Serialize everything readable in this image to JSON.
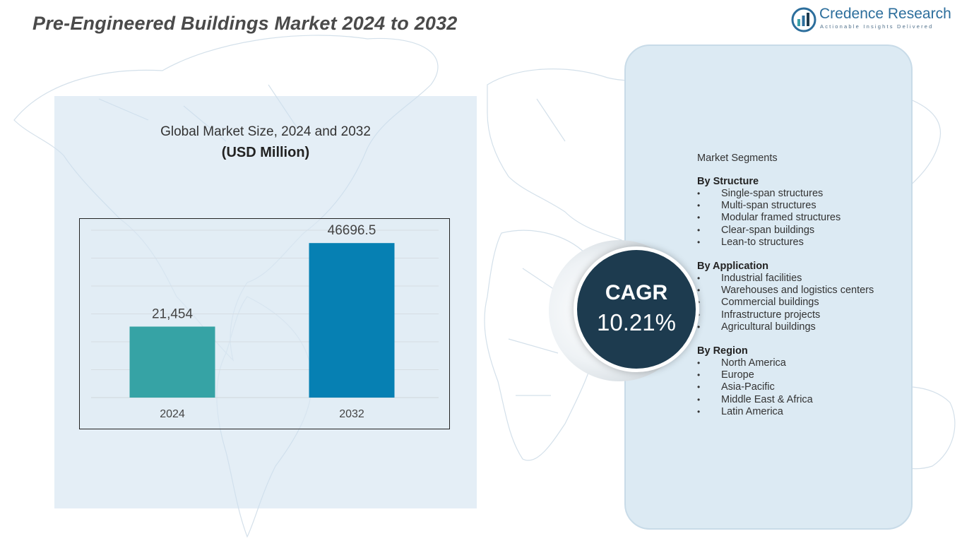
{
  "header": {
    "title": "Pre-Engineered Buildings Market 2024 to 2032",
    "logo_name": "Credence Research",
    "logo_tagline": "Actionable Insights Delivered"
  },
  "chart_data": {
    "type": "bar",
    "title": "Global Market Size, 2024 and 2032",
    "subtitle": "(USD Million)",
    "categories": [
      "2024",
      "2032"
    ],
    "values": [
      21454,
      46696.5
    ],
    "data_labels": [
      "21,454",
      "46696.5"
    ],
    "colors": [
      "#36a3a5",
      "#0680b3"
    ],
    "ylim": [
      0,
      52500
    ],
    "grid": true,
    "xlabel": "",
    "ylabel": ""
  },
  "cagr": {
    "label": "CAGR",
    "value": "10.21%",
    "circle_color": "#1d3b4f"
  },
  "segments": {
    "title": "Market Segments",
    "groups": [
      {
        "title": "By Structure",
        "items": [
          "Single-span structures",
          "Multi-span structures",
          "Modular framed structures",
          "Clear-span buildings",
          "Lean-to structures"
        ]
      },
      {
        "title": "By Application",
        "items": [
          "Industrial facilities",
          "Warehouses and logistics centers",
          "Commercial buildings",
          "Infrastructure projects",
          "Agricultural buildings"
        ]
      },
      {
        "title": "By Region",
        "items": [
          "North America",
          "Europe",
          "Asia-Pacific",
          "Middle East & Africa",
          "Latin America"
        ]
      }
    ]
  }
}
